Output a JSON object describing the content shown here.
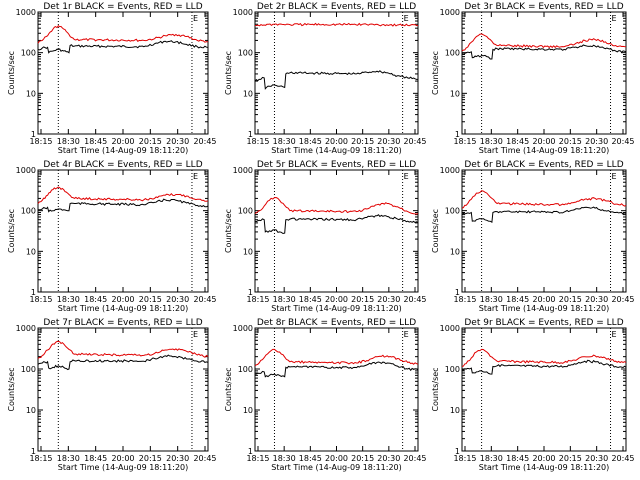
{
  "figure": {
    "colors": {
      "events": "#000000",
      "lld": "#e00000",
      "background": "#ffffff",
      "axis": "#000000"
    }
  },
  "chart_data": [
    {
      "type": "line",
      "title": "Det 1r BLACK = Events, RED = LLD",
      "xlabel": "Start Time (14-Aug-09 18:11:20)",
      "ylabel": "Counts/sec",
      "yscale": "log",
      "ylim": [
        1,
        1000
      ],
      "y_ticks": [
        "1",
        "10",
        "100",
        "1000"
      ],
      "xlim": [
        "18:11",
        "20:50"
      ],
      "x_ticks": [
        "18:15",
        "18:30",
        "18:45",
        "20:00",
        "20:15",
        "20:30",
        "20:45"
      ],
      "markers": [
        {
          "x": "18:30",
          "style": "dotted"
        },
        {
          "x": "20:35",
          "style": "dotted",
          "label": "E"
        }
      ],
      "series": [
        {
          "name": "Events",
          "x": [
            "18:11",
            "18:15",
            "18:20",
            "18:21",
            "18:25",
            "18:30",
            "18:35",
            "18:40",
            "18:41",
            "18:45",
            "19:50",
            "20:00",
            "20:10",
            "20:20",
            "20:30",
            "20:40",
            "20:50"
          ],
          "y": [
            120,
            130,
            135,
            100,
            110,
            120,
            110,
            100,
            150,
            145,
            140,
            165,
            190,
            185,
            160,
            140,
            135
          ]
        },
        {
          "name": "LLD",
          "x": [
            "18:11",
            "18:15",
            "18:20",
            "18:25",
            "18:30",
            "18:35",
            "18:40",
            "18:45",
            "19:50",
            "20:00",
            "20:10",
            "20:20",
            "20:30",
            "20:40",
            "20:50"
          ],
          "y": [
            170,
            200,
            260,
            380,
            460,
            380,
            280,
            210,
            200,
            220,
            260,
            280,
            250,
            200,
            185
          ]
        }
      ]
    },
    {
      "type": "line",
      "title": "Det 2r BLACK = Events, RED = LLD",
      "xlabel": "Start Time (14-Aug-09 18:11:20)",
      "ylabel": "Counts/sec",
      "yscale": "log",
      "ylim": [
        1,
        1000
      ],
      "y_ticks": [
        "1",
        "10",
        "100",
        "1000"
      ],
      "xlim": [
        "18:11",
        "20:50"
      ],
      "x_ticks": [
        "18:15",
        "18:30",
        "18:45",
        "20:00",
        "20:15",
        "20:30",
        "20:45"
      ],
      "markers": [
        {
          "x": "18:30",
          "style": "dotted"
        },
        {
          "x": "20:35",
          "style": "dotted",
          "label": "E"
        }
      ],
      "series": [
        {
          "name": "Events",
          "x": [
            "18:11",
            "18:15",
            "18:20",
            "18:21",
            "18:25",
            "18:30",
            "18:35",
            "18:40",
            "18:41",
            "18:45",
            "19:50",
            "20:00",
            "20:10",
            "20:20",
            "20:30",
            "20:40",
            "20:50"
          ],
          "y": [
            20,
            22,
            24,
            13,
            15,
            16,
            15,
            14,
            30,
            32,
            30,
            33,
            35,
            32,
            27,
            24,
            22
          ]
        },
        {
          "name": "LLD",
          "x": [
            "18:11",
            "18:30",
            "18:45",
            "20:00",
            "20:15",
            "20:30",
            "20:50"
          ],
          "y": [
            470,
            500,
            490,
            495,
            485,
            480,
            470
          ]
        }
      ]
    },
    {
      "type": "line",
      "title": "Det 3r BLACK = Events, RED = LLD",
      "xlabel": "Start Time (14-Aug-09 18:11:20)",
      "ylabel": "Counts/sec",
      "yscale": "log",
      "ylim": [
        1,
        1000
      ],
      "y_ticks": [
        "1",
        "10",
        "100",
        "1000"
      ],
      "xlim": [
        "18:11",
        "20:50"
      ],
      "x_ticks": [
        "18:15",
        "18:30",
        "18:45",
        "20:00",
        "20:15",
        "20:30",
        "20:45"
      ],
      "markers": [
        {
          "x": "18:30",
          "style": "dotted"
        },
        {
          "x": "20:35",
          "style": "dotted",
          "label": "E"
        }
      ],
      "series": [
        {
          "name": "Events",
          "x": [
            "18:11",
            "18:15",
            "18:20",
            "18:21",
            "18:25",
            "18:30",
            "18:35",
            "18:40",
            "18:41",
            "18:45",
            "19:50",
            "20:00",
            "20:10",
            "20:20",
            "20:30",
            "20:40",
            "20:50"
          ],
          "y": [
            95,
            100,
            105,
            75,
            80,
            85,
            80,
            70,
            120,
            125,
            120,
            135,
            150,
            145,
            125,
            110,
            105
          ]
        },
        {
          "name": "LLD",
          "x": [
            "18:11",
            "18:15",
            "18:20",
            "18:25",
            "18:30",
            "18:35",
            "18:40",
            "18:45",
            "19:50",
            "20:00",
            "20:10",
            "20:20",
            "20:30",
            "20:40",
            "20:50"
          ],
          "y": [
            110,
            130,
            180,
            250,
            290,
            250,
            190,
            150,
            140,
            160,
            200,
            210,
            185,
            150,
            140
          ]
        }
      ]
    },
    {
      "type": "line",
      "title": "Det 4r BLACK = Events, RED = LLD",
      "xlabel": "Start Time (14-Aug-09 18:11:20)",
      "ylabel": "Counts/sec",
      "yscale": "log",
      "ylim": [
        1,
        1000
      ],
      "y_ticks": [
        "1",
        "10",
        "100",
        "1000"
      ],
      "xlim": [
        "18:11",
        "20:50"
      ],
      "x_ticks": [
        "18:15",
        "18:30",
        "18:45",
        "20:00",
        "20:15",
        "20:30",
        "20:45"
      ],
      "markers": [
        {
          "x": "18:30",
          "style": "dotted"
        },
        {
          "x": "20:35",
          "style": "dotted",
          "label": "E"
        }
      ],
      "series": [
        {
          "name": "Events",
          "x": [
            "18:11",
            "18:15",
            "18:20",
            "18:21",
            "18:25",
            "18:30",
            "18:35",
            "18:40",
            "18:41",
            "18:45",
            "19:50",
            "20:00",
            "20:10",
            "20:20",
            "20:30",
            "20:40",
            "20:50"
          ],
          "y": [
            105,
            110,
            120,
            95,
            100,
            110,
            105,
            100,
            150,
            150,
            140,
            160,
            185,
            180,
            155,
            135,
            130
          ]
        },
        {
          "name": "LLD",
          "x": [
            "18:11",
            "18:15",
            "18:20",
            "18:25",
            "18:30",
            "18:35",
            "18:40",
            "18:45",
            "19:50",
            "20:00",
            "20:10",
            "20:20",
            "20:30",
            "20:40",
            "20:50"
          ],
          "y": [
            150,
            180,
            240,
            330,
            380,
            330,
            250,
            200,
            185,
            200,
            240,
            250,
            230,
            190,
            175
          ]
        }
      ]
    },
    {
      "type": "line",
      "title": "Det 5r BLACK = Events, RED = LLD",
      "xlabel": "Start Time (14-Aug-09 18:11:20)",
      "ylabel": "Counts/sec",
      "yscale": "log",
      "ylim": [
        1,
        1000
      ],
      "y_ticks": [
        "1",
        "10",
        "100",
        "1000"
      ],
      "xlim": [
        "18:11",
        "20:50"
      ],
      "x_ticks": [
        "18:15",
        "18:30",
        "18:45",
        "20:00",
        "20:15",
        "20:30",
        "20:45"
      ],
      "markers": [
        {
          "x": "18:30",
          "style": "dotted"
        },
        {
          "x": "20:35",
          "style": "dotted",
          "label": "E"
        }
      ],
      "series": [
        {
          "name": "Events",
          "x": [
            "18:11",
            "18:15",
            "18:20",
            "18:21",
            "18:25",
            "18:30",
            "18:35",
            "18:40",
            "18:41",
            "18:45",
            "19:50",
            "20:00",
            "20:10",
            "20:20",
            "20:30",
            "20:40",
            "20:50"
          ],
          "y": [
            55,
            58,
            60,
            30,
            32,
            34,
            30,
            28,
            60,
            62,
            60,
            68,
            75,
            72,
            62,
            55,
            52
          ]
        },
        {
          "name": "LLD",
          "x": [
            "18:11",
            "18:15",
            "18:20",
            "18:25",
            "18:30",
            "18:35",
            "18:40",
            "18:45",
            "19:50",
            "20:00",
            "20:10",
            "20:20",
            "20:30",
            "20:40",
            "20:50"
          ],
          "y": [
            85,
            100,
            130,
            180,
            210,
            180,
            135,
            100,
            95,
            110,
            140,
            150,
            125,
            95,
            85
          ]
        }
      ]
    },
    {
      "type": "line",
      "title": "Det 6r BLACK = Events, RED = LLD",
      "xlabel": "Start Time (14-Aug-09 18:11:20)",
      "ylabel": "Counts/sec",
      "yscale": "log",
      "ylim": [
        1,
        1000
      ],
      "y_ticks": [
        "1",
        "10",
        "100",
        "1000"
      ],
      "xlim": [
        "18:11",
        "20:50"
      ],
      "x_ticks": [
        "18:15",
        "18:30",
        "18:45",
        "20:00",
        "20:15",
        "20:30",
        "20:45"
      ],
      "markers": [
        {
          "x": "18:30",
          "style": "dotted"
        },
        {
          "x": "20:35",
          "style": "dotted",
          "label": "E"
        }
      ],
      "series": [
        {
          "name": "Events",
          "x": [
            "18:11",
            "18:15",
            "18:20",
            "18:21",
            "18:25",
            "18:30",
            "18:35",
            "18:40",
            "18:41",
            "18:45",
            "19:50",
            "20:00",
            "20:10",
            "20:20",
            "20:30",
            "20:40",
            "20:50"
          ],
          "y": [
            80,
            85,
            90,
            55,
            60,
            62,
            58,
            52,
            90,
            95,
            92,
            105,
            120,
            115,
            100,
            90,
            85
          ]
        },
        {
          "name": "LLD",
          "x": [
            "18:11",
            "18:15",
            "18:20",
            "18:25",
            "18:30",
            "18:35",
            "18:40",
            "18:45",
            "19:50",
            "20:00",
            "20:10",
            "20:20",
            "20:30",
            "20:40",
            "20:50"
          ],
          "y": [
            115,
            135,
            190,
            270,
            310,
            270,
            200,
            150,
            140,
            160,
            190,
            200,
            175,
            145,
            135
          ]
        }
      ]
    },
    {
      "type": "line",
      "title": "Det 7r BLACK = Events, RED = LLD",
      "xlabel": "Start Time (14-Aug-09 18:11:20)",
      "ylabel": "Counts/sec",
      "yscale": "log",
      "ylim": [
        1,
        1000
      ],
      "y_ticks": [
        "1",
        "10",
        "100",
        "1000"
      ],
      "xlim": [
        "18:11",
        "20:50"
      ],
      "x_ticks": [
        "18:15",
        "18:30",
        "18:45",
        "20:00",
        "20:15",
        "20:30",
        "20:45"
      ],
      "markers": [
        {
          "x": "18:30",
          "style": "dotted"
        },
        {
          "x": "20:35",
          "style": "dotted",
          "label": "E"
        }
      ],
      "series": [
        {
          "name": "Events",
          "x": [
            "18:11",
            "18:15",
            "18:20",
            "18:21",
            "18:25",
            "18:30",
            "18:35",
            "18:40",
            "18:41",
            "18:45",
            "19:50",
            "20:00",
            "20:10",
            "20:20",
            "20:30",
            "20:40",
            "20:50"
          ],
          "y": [
            130,
            140,
            150,
            105,
            110,
            120,
            110,
            100,
            150,
            160,
            155,
            180,
            210,
            200,
            175,
            155,
            145
          ]
        },
        {
          "name": "LLD",
          "x": [
            "18:11",
            "18:15",
            "18:20",
            "18:25",
            "18:30",
            "18:35",
            "18:40",
            "18:45",
            "19:50",
            "20:00",
            "20:10",
            "20:20",
            "20:30",
            "20:40",
            "20:50"
          ],
          "y": [
            180,
            215,
            290,
            410,
            470,
            410,
            300,
            230,
            215,
            240,
            290,
            310,
            270,
            220,
            200
          ]
        }
      ]
    },
    {
      "type": "line",
      "title": "Det 8r BLACK = Events, RED = LLD",
      "xlabel": "Start Time (14-Aug-09 18:11:20)",
      "ylabel": "Counts/sec",
      "yscale": "log",
      "ylim": [
        1,
        1000
      ],
      "y_ticks": [
        "1",
        "10",
        "100",
        "1000"
      ],
      "xlim": [
        "18:11",
        "20:50"
      ],
      "x_ticks": [
        "18:15",
        "18:30",
        "18:45",
        "20:00",
        "20:15",
        "20:30",
        "20:45"
      ],
      "markers": [
        {
          "x": "18:30",
          "style": "dotted"
        },
        {
          "x": "20:35",
          "style": "dotted",
          "label": "E"
        }
      ],
      "series": [
        {
          "name": "Events",
          "x": [
            "18:11",
            "18:15",
            "18:20",
            "18:21",
            "18:25",
            "18:30",
            "18:35",
            "18:40",
            "18:41",
            "18:45",
            "19:50",
            "20:00",
            "20:10",
            "20:20",
            "20:30",
            "20:40",
            "20:50"
          ],
          "y": [
            75,
            78,
            85,
            65,
            70,
            75,
            70,
            65,
            110,
            112,
            108,
            125,
            145,
            140,
            118,
            100,
            95
          ]
        },
        {
          "name": "LLD",
          "x": [
            "18:11",
            "18:15",
            "18:20",
            "18:25",
            "18:30",
            "18:35",
            "18:40",
            "18:45",
            "19:50",
            "20:00",
            "20:10",
            "20:20",
            "20:30",
            "20:40",
            "20:50"
          ],
          "y": [
            120,
            140,
            190,
            260,
            300,
            260,
            195,
            150,
            140,
            160,
            200,
            210,
            180,
            145,
            130
          ]
        }
      ]
    },
    {
      "type": "line",
      "title": "Det 9r BLACK = Events, RED = LLD",
      "xlabel": "Start Time (14-Aug-09 18:11:20)",
      "ylabel": "Counts/sec",
      "yscale": "log",
      "ylim": [
        1,
        1000
      ],
      "y_ticks": [
        "1",
        "10",
        "100",
        "1000"
      ],
      "xlim": [
        "18:11",
        "20:50"
      ],
      "x_ticks": [
        "18:15",
        "18:30",
        "18:45",
        "20:00",
        "20:15",
        "20:30",
        "20:45"
      ],
      "markers": [
        {
          "x": "18:30",
          "style": "dotted"
        },
        {
          "x": "20:35",
          "style": "dotted",
          "label": "E"
        }
      ],
      "series": [
        {
          "name": "Events",
          "x": [
            "18:11",
            "18:15",
            "18:20",
            "18:21",
            "18:25",
            "18:30",
            "18:35",
            "18:40",
            "18:41",
            "18:45",
            "19:50",
            "20:00",
            "20:10",
            "20:20",
            "20:30",
            "20:40",
            "20:50"
          ],
          "y": [
            95,
            100,
            105,
            80,
            85,
            90,
            85,
            75,
            115,
            120,
            115,
            135,
            155,
            150,
            130,
            115,
            110
          ]
        },
        {
          "name": "LLD",
          "x": [
            "18:11",
            "18:15",
            "18:20",
            "18:25",
            "18:30",
            "18:35",
            "18:40",
            "18:45",
            "19:50",
            "20:00",
            "20:10",
            "20:20",
            "20:30",
            "20:40",
            "20:50"
          ],
          "y": [
            115,
            135,
            185,
            260,
            300,
            260,
            195,
            155,
            145,
            165,
            200,
            210,
            185,
            155,
            145
          ]
        }
      ]
    }
  ]
}
